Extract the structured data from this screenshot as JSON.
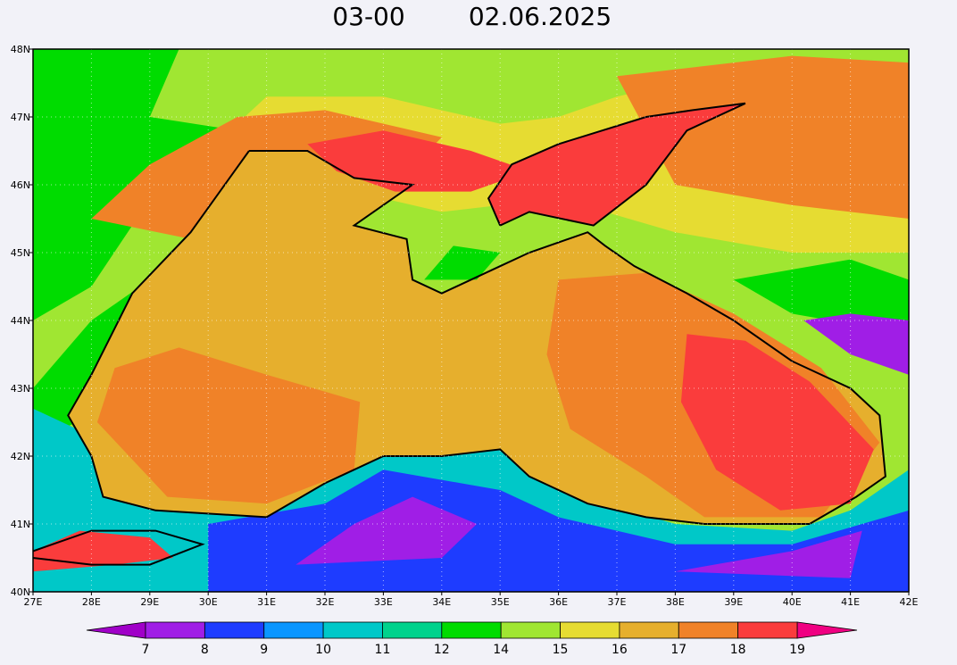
{
  "map": {
    "title": {
      "time": "03-00",
      "date": "02.06.2025"
    },
    "lat_labels": [
      "48N",
      "47N",
      "46N",
      "45N",
      "44N",
      "43N",
      "42N",
      "41N",
      "40N"
    ],
    "lon_labels": [
      "27E",
      "28E",
      "29E",
      "30E",
      "31E",
      "32E",
      "33E",
      "34E",
      "35E",
      "36E",
      "37E",
      "38E",
      "39E",
      "40E",
      "41E",
      "42E"
    ],
    "colorbar": {
      "labels": [
        7,
        8,
        9,
        10,
        11,
        12,
        14,
        15,
        16,
        17,
        18,
        19
      ],
      "colors": [
        "#a01ee6",
        "#1e3cff",
        "#0a96ff",
        "#00c8c8",
        "#00d28c",
        "#00dc00",
        "#a0e632",
        "#e6dc32",
        "#e6af2d",
        "#f08228",
        "#fa3c3c"
      ],
      "under_color": "#a000c8",
      "over_color": "#f00082"
    }
  }
}
